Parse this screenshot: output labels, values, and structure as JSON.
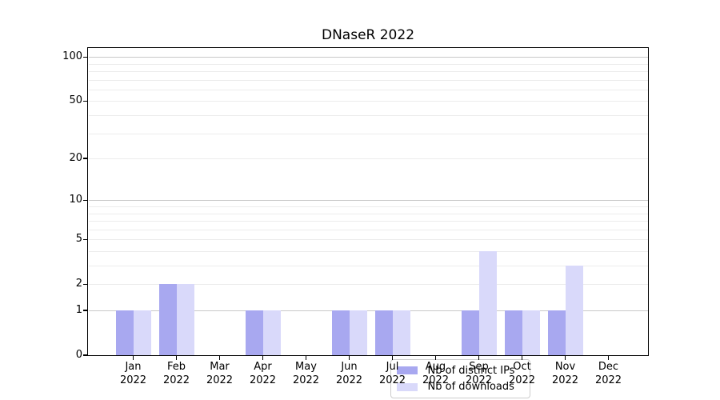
{
  "title": "DNaseR 2022",
  "chart_data": {
    "type": "bar",
    "title": "DNaseR 2022",
    "categories": [
      "Jan 2022",
      "Feb 2022",
      "Mar 2022",
      "Apr 2022",
      "May 2022",
      "Jun 2022",
      "Jul 2022",
      "Aug 2022",
      "Sep 2022",
      "Oct 2022",
      "Nov 2022",
      "Dec 2022"
    ],
    "series": [
      {
        "name": "Nb of distinct IPs",
        "color": "#a8a8f0",
        "values": [
          1,
          2,
          0,
          1,
          0,
          1,
          1,
          0,
          1,
          1,
          1,
          0
        ]
      },
      {
        "name": "Nb of downloads",
        "color": "#d9d9fa",
        "values": [
          1,
          2,
          0,
          1,
          0,
          1,
          1,
          0,
          4,
          1,
          3,
          0
        ]
      }
    ],
    "xlabel": "",
    "ylabel": "",
    "yscale": "log1p",
    "ylim": [
      0,
      115
    ],
    "ytick_values": [
      0,
      1,
      2,
      5,
      10,
      20,
      50,
      100
    ],
    "ytick_labels": [
      "0",
      "1",
      "2",
      "5",
      "10",
      "20",
      "50",
      "100"
    ],
    "grid": true,
    "grid_major_values": [
      1,
      10,
      100
    ],
    "grid_minor_values": [
      2,
      3,
      4,
      5,
      6,
      7,
      8,
      9,
      20,
      30,
      40,
      50,
      60,
      70,
      80,
      90
    ],
    "legend_position": "lower center"
  },
  "colors": {
    "bar_distinct_ips": "#a8a8f0",
    "bar_downloads": "#d9d9fa",
    "grid_major": "#c9c9c9",
    "grid_minor": "#ebebeb",
    "axis": "#000000",
    "legend_border": "#cccccc",
    "legend_background": "rgba(255,255,255,0.8)",
    "text": "#000000"
  }
}
